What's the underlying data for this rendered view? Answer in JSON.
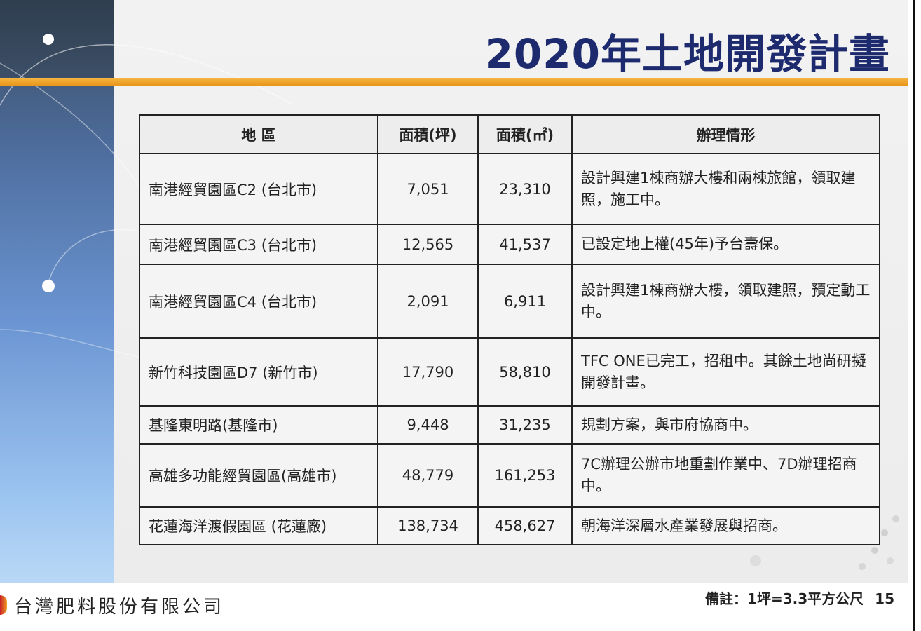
{
  "title": "2020年土地開發計畫",
  "table": {
    "headers": [
      "地 區",
      "面積(坪)",
      "面積(㎡)",
      "辦理情形"
    ],
    "rows": [
      {
        "area": "南港經貿園區C2 (台北市)",
        "ping": "7,051",
        "sqm": "23,310",
        "status": "設計興建1棟商辦大樓和兩棟旅館，領取建照，施工中。"
      },
      {
        "area": "南港經貿園區C3 (台北市)",
        "ping": "12,565",
        "sqm": "41,537",
        "status": "已設定地上權(45年)予台壽保。"
      },
      {
        "area": "南港經貿園區C4 (台北市)",
        "ping": "2,091",
        "sqm": "6,911",
        "status": "設計興建1棟商辦大樓，領取建照，預定動工中。"
      },
      {
        "area": "新竹科技園區D7 (新竹市)",
        "ping": "17,790",
        "sqm": "58,810",
        "status": "TFC ONE已完工，招租中。其餘土地尚研擬開發計畫。"
      },
      {
        "area": "基隆東明路(基隆市)",
        "ping": "9,448",
        "sqm": "31,235",
        "status": "規劃方案，與市府協商中。"
      },
      {
        "area": "高雄多功能經貿園區(高雄市)",
        "ping": "48,779",
        "sqm": "161,253",
        "status": "7C辦理公辦市地重劃作業中、7D辦理招商中。"
      },
      {
        "area": "花蓮海洋渡假園區 (花蓮廠)",
        "ping": "138,734",
        "sqm": "458,627",
        "status": "朝海洋深層水產業發展與招商。"
      }
    ]
  },
  "footer": {
    "company": "台灣肥料股份有限公司",
    "note": "備註：1坪=3.3平方公尺",
    "page": "15"
  }
}
